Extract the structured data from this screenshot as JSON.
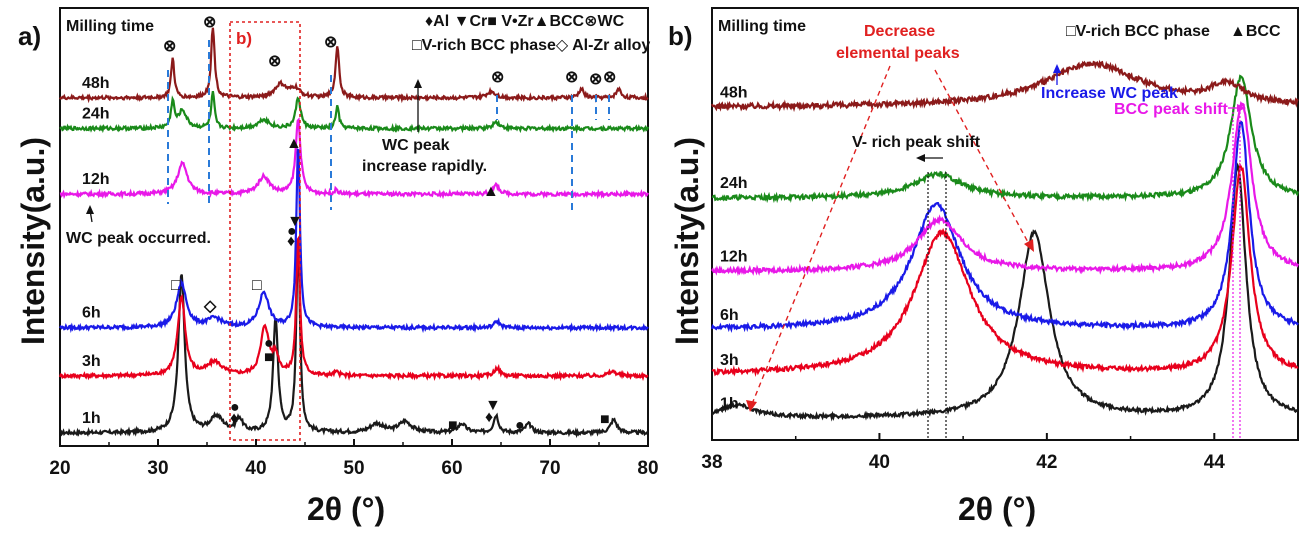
{
  "chart_data": [
    {
      "type": "line",
      "panel_label": "a)",
      "header": "Milling  time",
      "inset_label": "b)",
      "xlabel": "2θ (°)",
      "ylabel": "Intensity(a.u.)",
      "xlim": [
        20,
        80
      ],
      "xticks": [
        "20",
        "30",
        "40",
        "50",
        "60",
        "70",
        "80"
      ],
      "legend": [
        "♦Al ▼Cr■ V•Zr▲BCC⊗WC",
        "□V-rich BCC phase◇ Al-Zr alloy"
      ],
      "annotations": [
        "WC peak",
        "increase rapidly.",
        "WC peak occurred."
      ],
      "series": [
        {
          "name": "1h",
          "color": "#1a1a1a",
          "baseline": 0.03,
          "noise": 0.004,
          "peaks": [
            [
              32.4,
              0.36,
              0.38
            ],
            [
              36.0,
              0.035,
              0.8
            ],
            [
              38.3,
              0.03,
              0.4
            ],
            [
              42.0,
              0.26,
              0.3
            ],
            [
              44.3,
              0.45,
              0.22
            ],
            [
              52.3,
              0.02,
              0.8
            ],
            [
              55.2,
              0.025,
              0.8
            ],
            [
              61.0,
              0.02,
              0.5
            ],
            [
              64.5,
              0.04,
              0.3
            ],
            [
              67.8,
              0.02,
              0.4
            ],
            [
              76.5,
              0.03,
              0.4
            ]
          ]
        },
        {
          "name": "3h",
          "color": "#e8001c",
          "baseline": 0.16,
          "noise": 0.004,
          "peaks": [
            [
              32.4,
              0.18,
              0.45
            ],
            [
              35.8,
              0.03,
              0.9
            ],
            [
              40.9,
              0.11,
              0.5
            ],
            [
              42.0,
              0.04,
              0.4
            ],
            [
              44.3,
              0.32,
              0.22
            ],
            [
              48.2,
              0.008,
              0.3
            ],
            [
              64.6,
              0.018,
              0.35
            ],
            [
              76.4,
              0.01,
              0.5
            ]
          ]
        },
        {
          "name": "6h",
          "color": "#1a1ae8",
          "baseline": 0.27,
          "noise": 0.004,
          "peaks": [
            [
              32.4,
              0.1,
              0.6
            ],
            [
              35.8,
              0.02,
              0.9
            ],
            [
              40.8,
              0.08,
              0.6
            ],
            [
              44.3,
              0.42,
              0.22
            ],
            [
              64.6,
              0.015,
              0.35
            ]
          ]
        },
        {
          "name": "12h",
          "color": "#e818e8",
          "baseline": 0.575,
          "noise": 0.004,
          "peaks": [
            [
              32.5,
              0.07,
              0.6
            ],
            [
              40.8,
              0.04,
              0.7
            ],
            [
              44.3,
              0.17,
              0.3
            ],
            [
              48.2,
              0.01,
              0.2
            ],
            [
              64.5,
              0.02,
              0.4
            ]
          ]
        },
        {
          "name": "24h",
          "color": "#1a8a1a",
          "baseline": 0.725,
          "noise": 0.004,
          "peaks": [
            [
              31.5,
              0.06,
              0.2
            ],
            [
              32.5,
              0.04,
              0.5
            ],
            [
              35.6,
              0.08,
              0.2
            ],
            [
              40.8,
              0.02,
              0.7
            ],
            [
              44.3,
              0.07,
              0.3
            ],
            [
              48.3,
              0.05,
              0.2
            ],
            [
              64.5,
              0.015,
              0.4
            ]
          ]
        },
        {
          "name": "48h",
          "color": "#8b1a1a",
          "baseline": 0.795,
          "noise": 0.004,
          "peaks": [
            [
              31.5,
              0.09,
              0.2
            ],
            [
              35.6,
              0.16,
              0.22
            ],
            [
              42.5,
              0.03,
              0.7
            ],
            [
              44.0,
              0.02,
              0.6
            ],
            [
              48.3,
              0.12,
              0.22
            ],
            [
              64.0,
              0.015,
              0.5
            ],
            [
              73.2,
              0.02,
              0.3
            ],
            [
              77.0,
              0.02,
              0.3
            ]
          ]
        }
      ]
    },
    {
      "type": "line",
      "panel_label": "b)",
      "header": "Milling  time",
      "xlabel": "2θ (°)",
      "ylabel": "Intensity(a.u.)",
      "xlim": [
        38,
        45
      ],
      "xticks": [
        "38",
        "40",
        "42",
        "44"
      ],
      "legend": [
        "□V-rich BCC phase",
        "▲BCC"
      ],
      "annotations": [
        "Decrease",
        "elemental peaks",
        "Increase  WC peak",
        "BCC peak shift",
        "V- rich  peak shift"
      ],
      "series": [
        {
          "name": "1h",
          "color": "#1a1a1a",
          "baseline": 0.05,
          "noise": 0.004,
          "peaks": [
            [
              38.3,
              0.03,
              0.25
            ],
            [
              41.85,
              0.43,
              0.22
            ],
            [
              44.28,
              0.58,
              0.12
            ]
          ]
        },
        {
          "name": "3h",
          "color": "#e8001c",
          "baseline": 0.15,
          "noise": 0.005,
          "peaks": [
            [
              40.75,
              0.33,
              0.4
            ],
            [
              44.32,
              0.48,
              0.13
            ]
          ]
        },
        {
          "name": "6h",
          "color": "#1a1ae8",
          "baseline": 0.255,
          "noise": 0.005,
          "peaks": [
            [
              40.68,
              0.29,
              0.35
            ],
            [
              44.32,
              0.48,
              0.12
            ]
          ]
        },
        {
          "name": "12h",
          "color": "#e818e8",
          "baseline": 0.39,
          "noise": 0.005,
          "peaks": [
            [
              40.72,
              0.12,
              0.32
            ],
            [
              44.33,
              0.39,
              0.14
            ]
          ]
        },
        {
          "name": "24h",
          "color": "#1a8a1a",
          "baseline": 0.56,
          "noise": 0.005,
          "peaks": [
            [
              40.7,
              0.055,
              0.35
            ],
            [
              44.32,
              0.28,
              0.15
            ]
          ]
        },
        {
          "name": "48h",
          "color": "#8b1a1a",
          "baseline": 0.77,
          "noise": 0.006,
          "peaks": [
            [
              42.55,
              0.1,
              0.7
            ],
            [
              44.15,
              0.045,
              0.25
            ]
          ]
        }
      ]
    }
  ]
}
